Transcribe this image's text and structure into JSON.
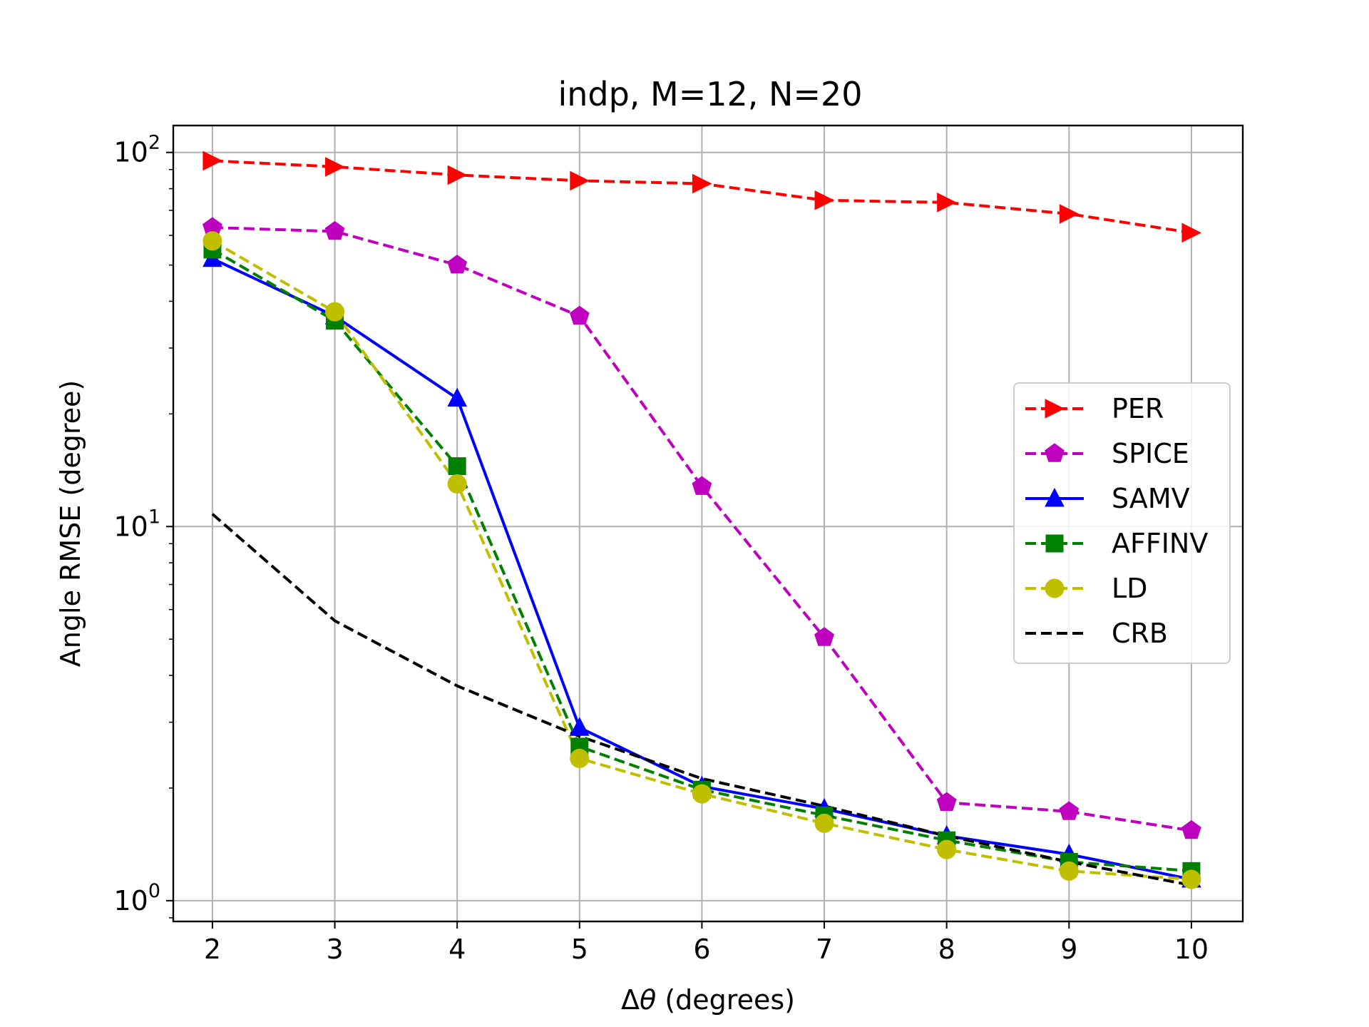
{
  "chart_data": {
    "type": "line",
    "title": "indp, M=12, N=20",
    "xlabel_prefix": "Δ",
    "xlabel_symbol": "θ",
    "xlabel_suffix": " (degrees)",
    "ylabel": "Angle RMSE (degree)",
    "yscale": "log",
    "grid": true,
    "legend_position": "right",
    "x": [
      2,
      3,
      4,
      5,
      6,
      7,
      8,
      9,
      10
    ],
    "xlim": [
      1.68,
      10.42
    ],
    "ylim": [
      0.88,
      118
    ],
    "x_ticks": [
      "2",
      "3",
      "4",
      "5",
      "6",
      "7",
      "8",
      "9",
      "10"
    ],
    "y_ticks": [
      {
        "value": 1,
        "base": "10",
        "exp": "0"
      },
      {
        "value": 10,
        "base": "10",
        "exp": "1"
      },
      {
        "value": 100,
        "base": "10",
        "exp": "2"
      }
    ],
    "series": [
      {
        "name": "PER",
        "color": "#ff0000",
        "dash": "dashed",
        "marker": "triangle-right",
        "values": [
          95,
          91.5,
          87,
          84,
          82.5,
          74.5,
          73.5,
          68.5,
          61
        ]
      },
      {
        "name": "SPICE",
        "color": "#bf00bf",
        "dash": "dashed",
        "marker": "pentagon",
        "values": [
          63,
          61.5,
          50,
          36.5,
          12.8,
          5.05,
          1.83,
          1.73,
          1.54
        ]
      },
      {
        "name": "SAMV",
        "color": "#0000ff",
        "dash": "solid",
        "marker": "triangle-up",
        "values": [
          52,
          36.5,
          22,
          2.9,
          2.02,
          1.76,
          1.49,
          1.33,
          1.14
        ]
      },
      {
        "name": "AFFINV",
        "color": "#008000",
        "dash": "dashed",
        "marker": "square",
        "values": [
          55,
          35.5,
          14.5,
          2.58,
          1.98,
          1.69,
          1.45,
          1.27,
          1.2
        ]
      },
      {
        "name": "LD",
        "color": "#bfbf00",
        "dash": "dashed",
        "marker": "circle",
        "values": [
          58,
          37.5,
          13,
          2.4,
          1.93,
          1.61,
          1.37,
          1.2,
          1.14
        ]
      },
      {
        "name": "CRB",
        "color": "#000000",
        "dash": "dashed",
        "marker": "none",
        "values": [
          10.8,
          5.6,
          3.75,
          2.75,
          2.12,
          1.79,
          1.49,
          1.27,
          1.1
        ]
      }
    ]
  }
}
